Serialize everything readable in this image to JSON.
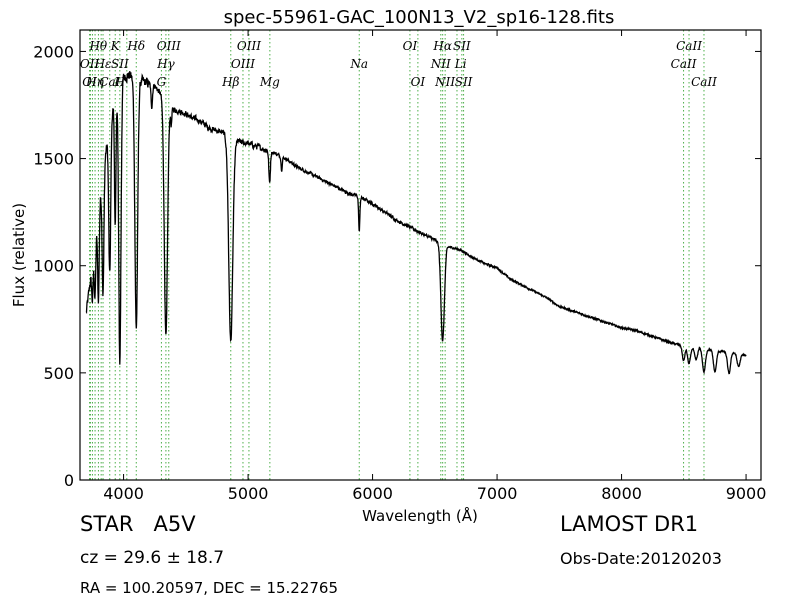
{
  "chart_data": {
    "type": "line",
    "title": "spec-55961-GAC_100N13_V2_sp16-128.fits",
    "xlabel": "Wavelength (Å)",
    "ylabel": "Flux (relative)",
    "xlim": [
      3650,
      9120
    ],
    "ylim": [
      0,
      2100
    ],
    "xticks": [
      4000,
      5000,
      6000,
      7000,
      8000,
      9000
    ],
    "yticks": [
      0,
      500,
      1000,
      1500,
      2000
    ],
    "grid": false,
    "line_color": "#000000",
    "marker_color": "#4daf4a",
    "continuum": {
      "x": [
        3700,
        3750,
        3800,
        3850,
        3900,
        3950,
        4000,
        4050,
        4100,
        4150,
        4200,
        4250,
        4300,
        4350,
        4400,
        4450,
        4500,
        4550,
        4600,
        4650,
        4700,
        4750,
        4800,
        4850,
        4900,
        4950,
        5000,
        5100,
        5200,
        5300,
        5400,
        5500,
        5600,
        5700,
        5800,
        5900,
        6000,
        6100,
        6200,
        6300,
        6400,
        6500,
        6600,
        6700,
        6800,
        6900,
        7000,
        7100,
        7200,
        7300,
        7400,
        7500,
        7600,
        7700,
        7800,
        7900,
        8000,
        8100,
        8200,
        8300,
        8400,
        8500,
        8600,
        8700,
        8800,
        8900,
        9000
      ],
      "y": [
        780,
        1000,
        1250,
        1500,
        1700,
        1830,
        1880,
        1890,
        1860,
        1860,
        1850,
        1840,
        1800,
        1760,
        1730,
        1720,
        1710,
        1690,
        1680,
        1660,
        1640,
        1630,
        1620,
        1600,
        1585,
        1575,
        1570,
        1550,
        1530,
        1500,
        1460,
        1430,
        1400,
        1370,
        1340,
        1320,
        1290,
        1250,
        1210,
        1180,
        1150,
        1120,
        1090,
        1075,
        1040,
        1010,
        990,
        940,
        910,
        880,
        850,
        810,
        790,
        770,
        750,
        730,
        710,
        700,
        680,
        660,
        640,
        625,
        620,
        610,
        600,
        595,
        580
      ]
    },
    "absorption_lines": [
      {
        "center": 3750,
        "depth": 160,
        "width": 6
      },
      {
        "center": 3771,
        "depth": 250,
        "width": 6
      },
      {
        "center": 3798,
        "depth": 400,
        "width": 6
      },
      {
        "center": 3835,
        "depth": 550,
        "width": 7
      },
      {
        "center": 3889,
        "depth": 700,
        "width": 8
      },
      {
        "center": 3933,
        "depth": 600,
        "width": 6
      },
      {
        "center": 3970,
        "depth": 1300,
        "width": 9
      },
      {
        "center": 4102,
        "depth": 1150,
        "width": 11
      },
      {
        "center": 4226,
        "depth": 100,
        "width": 6
      },
      {
        "center": 4340,
        "depth": 1100,
        "width": 13
      },
      {
        "center": 4383,
        "depth": 80,
        "width": 5
      },
      {
        "center": 4861,
        "depth": 950,
        "width": 16
      },
      {
        "center": 5173,
        "depth": 150,
        "width": 6
      },
      {
        "center": 5270,
        "depth": 60,
        "width": 5
      },
      {
        "center": 5893,
        "depth": 160,
        "width": 5
      },
      {
        "center": 6563,
        "depth": 450,
        "width": 14
      },
      {
        "center": 8498,
        "depth": 70,
        "width": 10
      },
      {
        "center": 8542,
        "depth": 80,
        "width": 12
      },
      {
        "center": 8598,
        "depth": 60,
        "width": 12
      },
      {
        "center": 8662,
        "depth": 110,
        "width": 12
      },
      {
        "center": 8750,
        "depth": 100,
        "width": 12
      },
      {
        "center": 8863,
        "depth": 100,
        "width": 12
      },
      {
        "center": 8940,
        "depth": 60,
        "width": 12
      }
    ],
    "xmin": 3700,
    "xmax": 9000,
    "markers": [
      3727,
      3734,
      3750,
      3771,
      3798,
      3820,
      3835,
      3889,
      3933,
      3970,
      4026,
      4102,
      4304,
      4340,
      4363,
      4861,
      4959,
      5007,
      5175,
      5893,
      6300,
      6364,
      6548,
      6563,
      6583,
      6678,
      6717,
      6731,
      8498,
      8542,
      8662
    ],
    "line_labels": [
      {
        "text": "Hθ",
        "x": 3797,
        "row": 1
      },
      {
        "text": "K",
        "x": 3933,
        "row": 1
      },
      {
        "text": "Hδ",
        "x": 4102,
        "row": 1
      },
      {
        "text": "OIII",
        "x": 4363,
        "row": 1
      },
      {
        "text": "OIII",
        "x": 5007,
        "row": 1
      },
      {
        "text": "OI",
        "x": 6300,
        "row": 1
      },
      {
        "text": "Hα",
        "x": 6563,
        "row": 1
      },
      {
        "text": "SII",
        "x": 6717,
        "row": 1
      },
      {
        "text": "CaII",
        "x": 8542,
        "row": 1
      },
      {
        "text": "OII",
        "x": 3727,
        "row": 2
      },
      {
        "text": "Hε",
        "x": 3835,
        "row": 2
      },
      {
        "text": "SII",
        "x": 3970,
        "row": 2
      },
      {
        "text": "Hγ",
        "x": 4340,
        "row": 2
      },
      {
        "text": "OIII",
        "x": 4959,
        "row": 2
      },
      {
        "text": "NII",
        "x": 6548,
        "row": 2
      },
      {
        "text": "Li",
        "x": 6708,
        "row": 2
      },
      {
        "text": "CaII",
        "x": 8498,
        "row": 2
      },
      {
        "text": "OI",
        "x": 3727,
        "row": 3
      },
      {
        "text": "Hη",
        "x": 3770,
        "row": 3
      },
      {
        "text": "H",
        "x": 3968,
        "row": 3
      },
      {
        "text": "CaI",
        "x": 3890,
        "row": 3
      },
      {
        "text": "G",
        "x": 4304,
        "row": 3
      },
      {
        "text": "Hβ",
        "x": 4861,
        "row": 3
      },
      {
        "text": "Mg",
        "x": 5175,
        "row": 3
      },
      {
        "text": "Na",
        "x": 5893,
        "row": 2
      },
      {
        "text": "OI",
        "x": 6364,
        "row": 3
      },
      {
        "text": "NII",
        "x": 6583,
        "row": 3
      },
      {
        "text": "SII",
        "x": 6731,
        "row": 3
      },
      {
        "text": "CaII",
        "x": 8662,
        "row": 3
      }
    ]
  },
  "footer": {
    "object_class": "STAR   A5V",
    "survey": "LAMOST DR1",
    "cz": "cz = 29.6 ± 18.7",
    "obs_date": "Obs-Date:20120203",
    "ra_dec": "RA = 100.20597, DEC = 15.22765"
  }
}
